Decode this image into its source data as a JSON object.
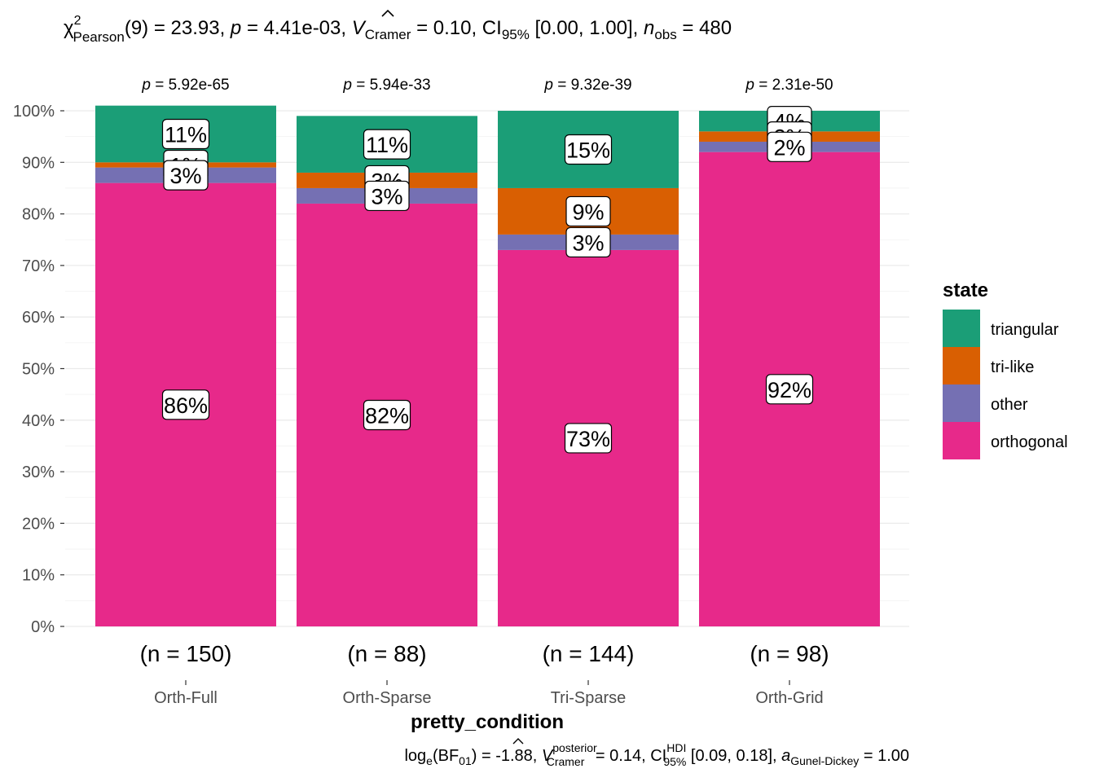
{
  "colors": {
    "triangular": "#1B9E77",
    "tri-like": "#D95F02",
    "other": "#7570B3",
    "orthogonal": "#E7298A"
  },
  "title": {
    "chi_symbol": "χ",
    "chi_sup": "2",
    "chi_sub": "Pearson",
    "part1": "(9) = 23.93, ",
    "p_symbol": "p",
    "part2": " = 4.41e-03, ",
    "v_symbol": "V",
    "v_sub": "Cramer",
    "part3": " = 0.10, CI",
    "ci_sub": "95%",
    "part4": " [0.00, 1.00], ",
    "n_symbol": "n",
    "n_sub": "obs",
    "part5": " = 480"
  },
  "caption": {
    "log": "log",
    "log_sub": "e",
    "bf_open": "(BF",
    "bf_sub": "01",
    "bf_close": ") = -1.88, ",
    "v_symbol": "V",
    "v_sup": "posterior",
    "v_sub": "Cramer",
    "part2": " = 0.14, CI",
    "ci_sup": "HDI",
    "ci_sub": "95%",
    "part3": " [0.09, 0.18], ",
    "a_symbol": "a",
    "a_sub": "Gunel-Dickey",
    "part4": " = 1.00"
  },
  "chart_data": {
    "type": "bar",
    "stacked": true,
    "categories": [
      "Orth-Full",
      "Orth-Sparse",
      "Tri-Sparse",
      "Orth-Grid"
    ],
    "n_labels": [
      "(n = 150)",
      "(n = 88)",
      "(n = 144)",
      "(n = 98)"
    ],
    "p_values": [
      "5.92e-65",
      "5.94e-33",
      "9.32e-39",
      "2.31e-50"
    ],
    "p_prefix": "p",
    "series": [
      {
        "name": "orthogonal",
        "values": [
          86,
          82,
          73,
          92
        ],
        "labels": [
          "86%",
          "82%",
          "73%",
          "92%"
        ]
      },
      {
        "name": "other",
        "values": [
          3,
          3,
          3,
          2
        ],
        "labels": [
          "3%",
          "3%",
          "3%",
          "2%"
        ]
      },
      {
        "name": "tri-like",
        "values": [
          1,
          3,
          9,
          2
        ],
        "labels": [
          "1%",
          "3%",
          "9%",
          "2%"
        ]
      },
      {
        "name": "triangular",
        "values": [
          11,
          11,
          15,
          4
        ],
        "labels": [
          "11%",
          "11%",
          "15%",
          "4%"
        ]
      }
    ],
    "xlabel": "pretty_condition",
    "ylabel": "",
    "ylim": [
      0,
      100
    ],
    "y_ticks": [
      "0%",
      "10%",
      "20%",
      "30%",
      "40%",
      "50%",
      "60%",
      "70%",
      "80%",
      "90%",
      "100%"
    ],
    "legend": {
      "title": "state",
      "position": "right",
      "items": [
        "triangular",
        "tri-like",
        "other",
        "orthogonal"
      ]
    },
    "grid": true
  }
}
